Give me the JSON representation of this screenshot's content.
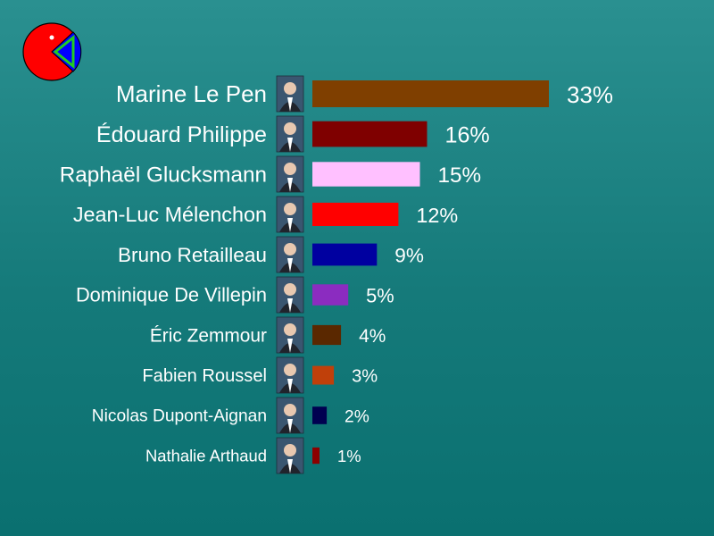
{
  "logo": {
    "icon": "pie-logo-icon",
    "colors": {
      "pie": "#ff0000",
      "slice": "#0000ff",
      "accent": "#22cc22"
    }
  },
  "chart_data": {
    "type": "bar",
    "orientation": "horizontal",
    "unit": "%",
    "xlim": [
      0,
      33
    ],
    "grid": false,
    "legend": "none",
    "categories": [
      "Marine Le Pen",
      "Édouard Philippe",
      "Raphaël Glucksmann",
      "Jean-Luc Mélenchon",
      "Bruno Retailleau",
      "Dominique De Villepin",
      "Éric Zemmour",
      "Fabien Roussel",
      "Nicolas Dupont-Aignan",
      "Nathalie Arthaud"
    ],
    "values": [
      33,
      16,
      15,
      12,
      9,
      5,
      4,
      3,
      2,
      1
    ],
    "value_labels": [
      "33%",
      "16%",
      "15%",
      "12%",
      "9%",
      "5%",
      "4%",
      "3%",
      "2%",
      "1%"
    ],
    "colors": [
      "#7f3f00",
      "#7f0000",
      "#ffc0ff",
      "#ff0000",
      "#0000a0",
      "#8b2cc0",
      "#5a2800",
      "#c0400a",
      "#000050",
      "#8b0000"
    ],
    "portrait_icons": [
      "portrait-marine-le-pen-icon",
      "portrait-edouard-philippe-icon",
      "portrait-raphael-glucksmann-icon",
      "portrait-jean-luc-melenchon-icon",
      "portrait-bruno-retailleau-icon",
      "portrait-dominique-de-villepin-icon",
      "portrait-eric-zemmour-icon",
      "portrait-fabien-roussel-icon",
      "portrait-nicolas-dupont-aignan-icon",
      "portrait-nathalie-arthaud-icon"
    ]
  }
}
